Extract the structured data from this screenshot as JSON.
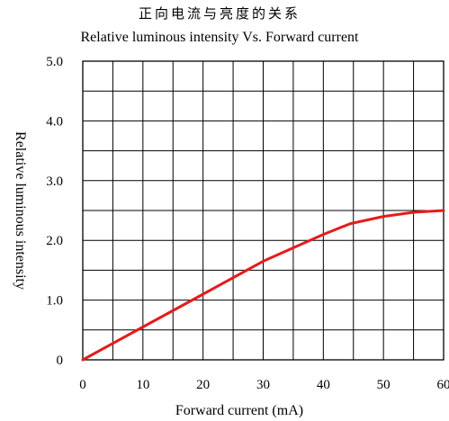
{
  "chart_data": {
    "type": "line",
    "title": "正向电流与亮度的关系",
    "subtitle": "Relative luminous intensity Vs. Forward current",
    "xlabel": "Forward current (mA)",
    "ylabel": "Relative luminous intensity",
    "xlim": [
      0,
      60
    ],
    "ylim": [
      0,
      5
    ],
    "x_ticks": [
      "0",
      "10",
      "20",
      "30",
      "40",
      "50",
      "60"
    ],
    "y_ticks": [
      "0",
      "1.0",
      "2.0",
      "3.0",
      "4.0",
      "5.0"
    ],
    "grid": true,
    "x_grid_step": 5,
    "y_grid_step": 0.5,
    "series": [
      {
        "color": "#e41c1c",
        "x": [
          0,
          10,
          20,
          30,
          40,
          44.5,
          50,
          55,
          60
        ],
        "y": [
          0,
          0.55,
          1.1,
          1.65,
          2.1,
          2.28,
          2.4,
          2.47,
          2.5
        ]
      }
    ]
  }
}
